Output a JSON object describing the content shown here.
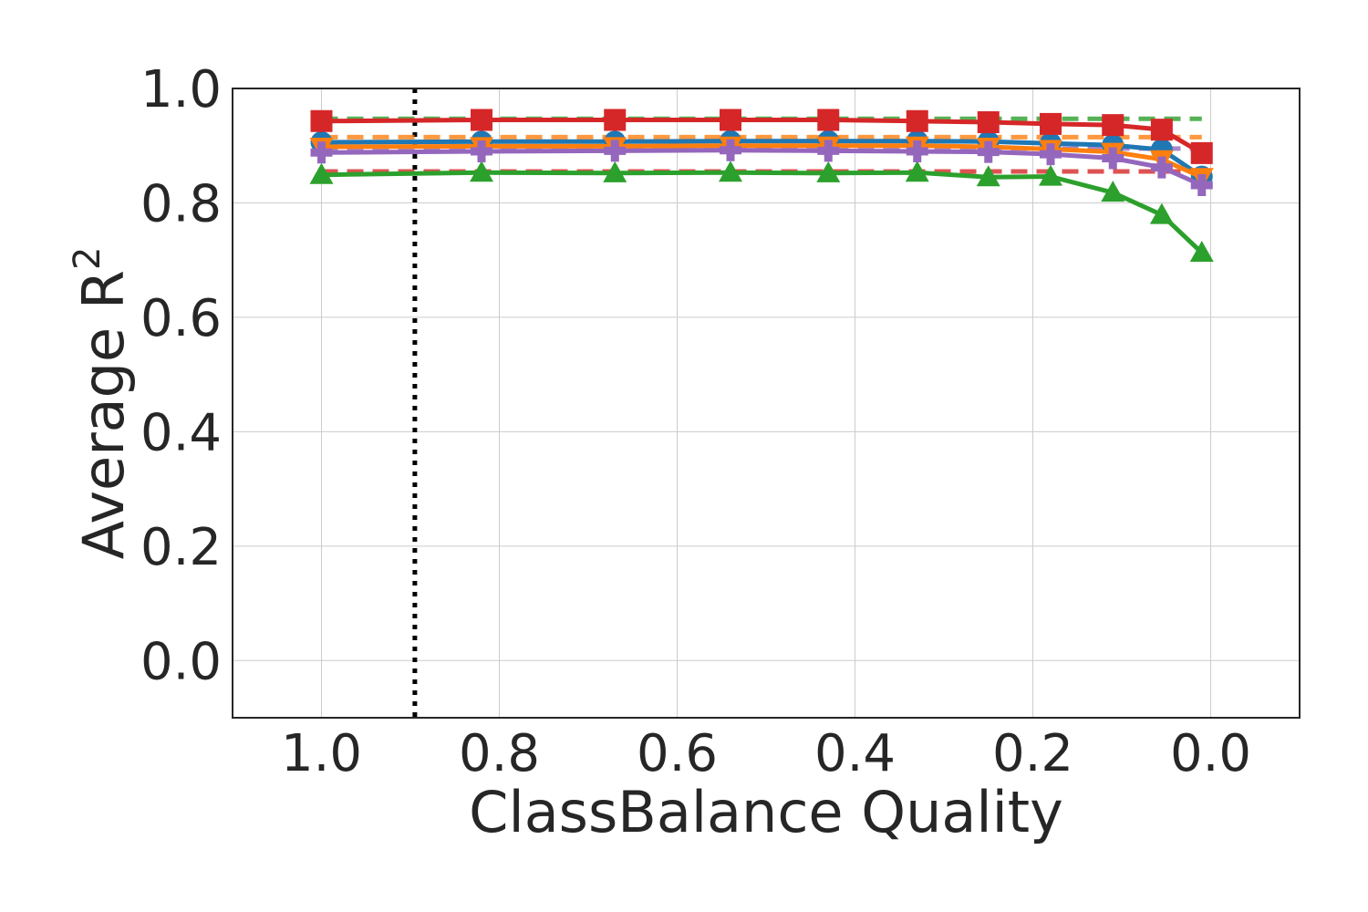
{
  "chart_data": {
    "type": "line",
    "xlabel": "ClassBalance Quality",
    "ylabel": "Average R",
    "ylabel_sup": "2",
    "xlim": [
      1.1,
      -0.1
    ],
    "ylim": [
      -0.1,
      1.0
    ],
    "xticks": [
      1.0,
      0.8,
      0.6,
      0.4,
      0.2,
      0.0
    ],
    "yticks": [
      0.0,
      0.2,
      0.4,
      0.6,
      0.8,
      1.0
    ],
    "xtick_labels": [
      "1.0",
      "0.8",
      "0.6",
      "0.4",
      "0.2",
      "0.0"
    ],
    "ytick_labels": [
      "0.0",
      "0.2",
      "0.4",
      "0.6",
      "0.8",
      "1.0"
    ],
    "grid": true,
    "vline": {
      "x": 0.895,
      "style": "dotted",
      "color": "#000000"
    },
    "x": [
      1.0,
      0.82,
      0.67,
      0.54,
      0.43,
      0.33,
      0.25,
      0.18,
      0.11,
      0.055,
      0.01
    ],
    "baselines": [
      {
        "color": "#2ca02c",
        "value": 0.947
      },
      {
        "color": "#ff7f0e",
        "value": 0.915
      },
      {
        "color": "#9467bd",
        "value": 0.895
      },
      {
        "color": "#d62728",
        "value": 0.855
      }
    ],
    "series": [
      {
        "color": "#1f77b4",
        "marker": "circle",
        "values": [
          0.906,
          0.907,
          0.907,
          0.908,
          0.908,
          0.908,
          0.907,
          0.904,
          0.901,
          0.893,
          0.846
        ]
      },
      {
        "color": "#ff7f0e",
        "marker": "triangle-down",
        "values": [
          0.898,
          0.899,
          0.899,
          0.9,
          0.9,
          0.9,
          0.898,
          0.894,
          0.889,
          0.876,
          0.845
        ]
      },
      {
        "color": "#2ca02c",
        "marker": "triangle-up",
        "values": [
          0.849,
          0.853,
          0.852,
          0.853,
          0.852,
          0.853,
          0.845,
          0.846,
          0.818,
          0.779,
          0.713
        ]
      },
      {
        "color": "#9467bd",
        "marker": "plus",
        "values": [
          0.888,
          0.89,
          0.891,
          0.892,
          0.891,
          0.89,
          0.889,
          0.885,
          0.878,
          0.862,
          0.831
        ]
      },
      {
        "color": "#d62728",
        "marker": "square",
        "values": [
          0.943,
          0.945,
          0.945,
          0.945,
          0.945,
          0.943,
          0.941,
          0.938,
          0.936,
          0.928,
          0.887
        ]
      }
    ]
  }
}
